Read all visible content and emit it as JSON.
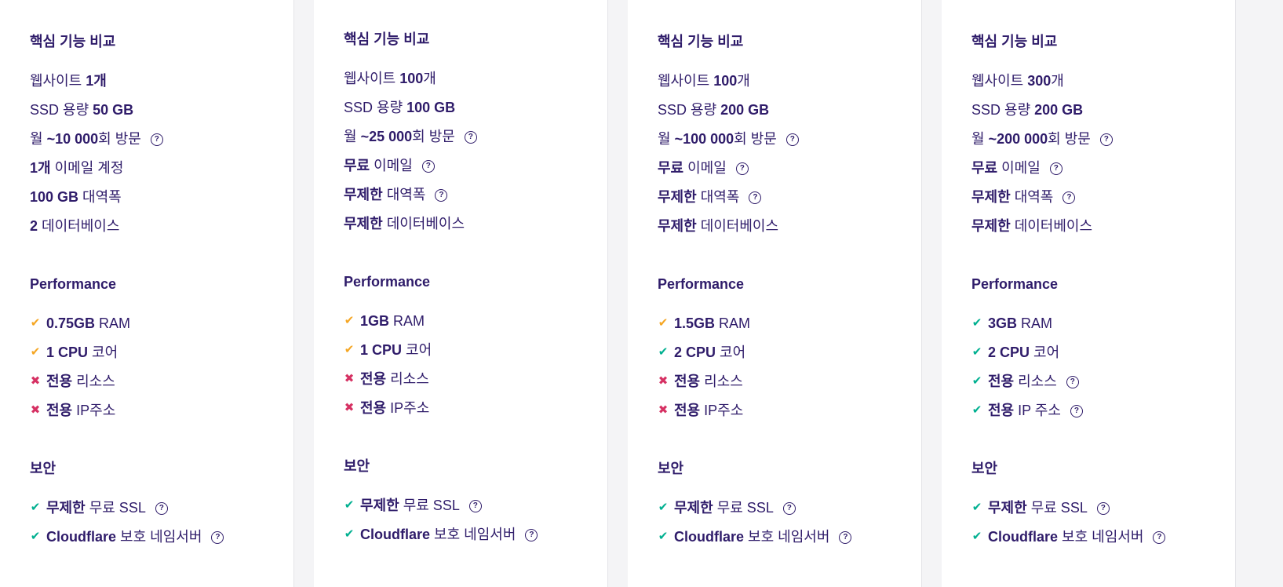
{
  "colors": {
    "text": "#2f1c6a",
    "check_orange": "#f5a623",
    "check_green": "#00b090",
    "cross": "#d63163"
  },
  "cards": [
    {
      "sections": [
        {
          "title": "핵심 기능 비교",
          "items": [
            {
              "icon": "none",
              "parts": [
                {
                  "t": "웹사이트 "
                },
                {
                  "t": "1개",
                  "b": true
                }
              ]
            },
            {
              "icon": "none",
              "parts": [
                {
                  "t": "SSD 용량 "
                },
                {
                  "t": "50 GB",
                  "b": true
                }
              ]
            },
            {
              "icon": "none",
              "help": true,
              "parts": [
                {
                  "t": "월 "
                },
                {
                  "t": "~10 000",
                  "b": true
                },
                {
                  "t": "회 방문"
                }
              ]
            },
            {
              "icon": "none",
              "parts": [
                {
                  "t": "1개",
                  "b": true
                },
                {
                  "t": " 이메일 계정"
                }
              ]
            },
            {
              "icon": "none",
              "parts": [
                {
                  "t": "100 GB",
                  "b": true
                },
                {
                  "t": " 대역폭"
                }
              ]
            },
            {
              "icon": "none",
              "parts": [
                {
                  "t": "2",
                  "b": true
                },
                {
                  "t": " 데이터베이스"
                }
              ]
            }
          ]
        },
        {
          "title": "Performance",
          "items": [
            {
              "icon": "check-orange",
              "parts": [
                {
                  "t": "0.75GB",
                  "b": true
                },
                {
                  "t": " RAM"
                }
              ]
            },
            {
              "icon": "check-orange",
              "parts": [
                {
                  "t": "1 CPU",
                  "b": true
                },
                {
                  "t": " 코어"
                }
              ]
            },
            {
              "icon": "cross",
              "parts": [
                {
                  "t": "전용",
                  "b": true
                },
                {
                  "t": " 리소스"
                }
              ]
            },
            {
              "icon": "cross",
              "parts": [
                {
                  "t": "전용",
                  "b": true
                },
                {
                  "t": " IP주소"
                }
              ]
            }
          ]
        },
        {
          "title": "보안",
          "items": [
            {
              "icon": "check-green",
              "help": true,
              "parts": [
                {
                  "t": "무제한",
                  "b": true
                },
                {
                  "t": " 무료 SSL"
                }
              ]
            },
            {
              "icon": "check-green",
              "help": true,
              "parts": [
                {
                  "t": "Cloudflare",
                  "b": true
                },
                {
                  "t": " 보호 네임서버"
                }
              ]
            }
          ]
        }
      ]
    },
    {
      "sections": [
        {
          "title": "핵심 기능 비교",
          "items": [
            {
              "icon": "none",
              "parts": [
                {
                  "t": "웹사이트 "
                },
                {
                  "t": "100",
                  "b": true
                },
                {
                  "t": "개"
                }
              ]
            },
            {
              "icon": "none",
              "parts": [
                {
                  "t": "SSD 용량 "
                },
                {
                  "t": "100 GB",
                  "b": true
                }
              ]
            },
            {
              "icon": "none",
              "help": true,
              "parts": [
                {
                  "t": "월 "
                },
                {
                  "t": "~25 000",
                  "b": true
                },
                {
                  "t": "회 방문"
                }
              ]
            },
            {
              "icon": "none",
              "help": true,
              "parts": [
                {
                  "t": "무료",
                  "b": true
                },
                {
                  "t": " 이메일"
                }
              ]
            },
            {
              "icon": "none",
              "help": true,
              "parts": [
                {
                  "t": "무제한",
                  "b": true
                },
                {
                  "t": " 대역폭"
                }
              ]
            },
            {
              "icon": "none",
              "parts": [
                {
                  "t": "무제한",
                  "b": true
                },
                {
                  "t": " 데이터베이스"
                }
              ]
            }
          ]
        },
        {
          "title": "Performance",
          "items": [
            {
              "icon": "check-orange",
              "parts": [
                {
                  "t": "1GB",
                  "b": true
                },
                {
                  "t": " RAM"
                }
              ]
            },
            {
              "icon": "check-orange",
              "parts": [
                {
                  "t": "1 CPU",
                  "b": true
                },
                {
                  "t": " 코어"
                }
              ]
            },
            {
              "icon": "cross",
              "parts": [
                {
                  "t": "전용",
                  "b": true
                },
                {
                  "t": " 리소스"
                }
              ]
            },
            {
              "icon": "cross",
              "parts": [
                {
                  "t": "전용",
                  "b": true
                },
                {
                  "t": " IP주소"
                }
              ]
            }
          ]
        },
        {
          "title": "보안",
          "items": [
            {
              "icon": "check-green",
              "help": true,
              "parts": [
                {
                  "t": "무제한",
                  "b": true
                },
                {
                  "t": " 무료 SSL"
                }
              ]
            },
            {
              "icon": "check-green",
              "help": true,
              "parts": [
                {
                  "t": "Cloudflare",
                  "b": true
                },
                {
                  "t": " 보호 네임서버"
                }
              ]
            }
          ]
        }
      ]
    },
    {
      "sections": [
        {
          "title": "핵심 기능 비교",
          "items": [
            {
              "icon": "none",
              "parts": [
                {
                  "t": "웹사이트 "
                },
                {
                  "t": "100",
                  "b": true
                },
                {
                  "t": "개"
                }
              ]
            },
            {
              "icon": "none",
              "parts": [
                {
                  "t": "SSD 용량 "
                },
                {
                  "t": "200 GB",
                  "b": true
                }
              ]
            },
            {
              "icon": "none",
              "help": true,
              "parts": [
                {
                  "t": "월 "
                },
                {
                  "t": "~100 000",
                  "b": true
                },
                {
                  "t": "회 방문"
                }
              ]
            },
            {
              "icon": "none",
              "help": true,
              "parts": [
                {
                  "t": "무료",
                  "b": true
                },
                {
                  "t": " 이메일"
                }
              ]
            },
            {
              "icon": "none",
              "help": true,
              "parts": [
                {
                  "t": "무제한",
                  "b": true
                },
                {
                  "t": " 대역폭"
                }
              ]
            },
            {
              "icon": "none",
              "parts": [
                {
                  "t": "무제한",
                  "b": true
                },
                {
                  "t": " 데이터베이스"
                }
              ]
            }
          ]
        },
        {
          "title": "Performance",
          "items": [
            {
              "icon": "check-orange",
              "parts": [
                {
                  "t": "1.5GB",
                  "b": true
                },
                {
                  "t": " RAM"
                }
              ]
            },
            {
              "icon": "check-green",
              "parts": [
                {
                  "t": "2 CPU",
                  "b": true
                },
                {
                  "t": " 코어"
                }
              ]
            },
            {
              "icon": "cross",
              "parts": [
                {
                  "t": "전용",
                  "b": true
                },
                {
                  "t": " 리소스"
                }
              ]
            },
            {
              "icon": "cross",
              "parts": [
                {
                  "t": "전용",
                  "b": true
                },
                {
                  "t": " IP주소"
                }
              ]
            }
          ]
        },
        {
          "title": "보안",
          "items": [
            {
              "icon": "check-green",
              "help": true,
              "parts": [
                {
                  "t": "무제한",
                  "b": true
                },
                {
                  "t": " 무료 SSL"
                }
              ]
            },
            {
              "icon": "check-green",
              "help": true,
              "parts": [
                {
                  "t": "Cloudflare",
                  "b": true
                },
                {
                  "t": " 보호 네임서버"
                }
              ]
            }
          ]
        }
      ]
    },
    {
      "sections": [
        {
          "title": "핵심 기능 비교",
          "items": [
            {
              "icon": "none",
              "parts": [
                {
                  "t": "웹사이트 "
                },
                {
                  "t": "300",
                  "b": true
                },
                {
                  "t": "개"
                }
              ]
            },
            {
              "icon": "none",
              "parts": [
                {
                  "t": "SSD 용량 "
                },
                {
                  "t": "200 GB",
                  "b": true
                }
              ]
            },
            {
              "icon": "none",
              "help": true,
              "parts": [
                {
                  "t": "월 "
                },
                {
                  "t": "~200 000",
                  "b": true
                },
                {
                  "t": "회 방문"
                }
              ]
            },
            {
              "icon": "none",
              "help": true,
              "parts": [
                {
                  "t": "무료",
                  "b": true
                },
                {
                  "t": " 이메일"
                }
              ]
            },
            {
              "icon": "none",
              "help": true,
              "parts": [
                {
                  "t": "무제한",
                  "b": true
                },
                {
                  "t": " 대역폭"
                }
              ]
            },
            {
              "icon": "none",
              "parts": [
                {
                  "t": "무제한",
                  "b": true
                },
                {
                  "t": " 데이터베이스"
                }
              ]
            }
          ]
        },
        {
          "title": "Performance",
          "items": [
            {
              "icon": "check-green",
              "parts": [
                {
                  "t": "3GB",
                  "b": true
                },
                {
                  "t": " RAM"
                }
              ]
            },
            {
              "icon": "check-green",
              "parts": [
                {
                  "t": "2 CPU",
                  "b": true
                },
                {
                  "t": " 코어"
                }
              ]
            },
            {
              "icon": "check-green",
              "help": true,
              "parts": [
                {
                  "t": "전용",
                  "b": true
                },
                {
                  "t": " 리소스"
                }
              ]
            },
            {
              "icon": "check-green",
              "help": true,
              "parts": [
                {
                  "t": "전용",
                  "b": true
                },
                {
                  "t": " IP 주소"
                }
              ]
            }
          ]
        },
        {
          "title": "보안",
          "items": [
            {
              "icon": "check-green",
              "help": true,
              "parts": [
                {
                  "t": "무제한",
                  "b": true
                },
                {
                  "t": " 무료 SSL"
                }
              ]
            },
            {
              "icon": "check-green",
              "help": true,
              "parts": [
                {
                  "t": "Cloudflare",
                  "b": true
                },
                {
                  "t": " 보호 네임서버"
                }
              ]
            }
          ]
        }
      ]
    }
  ]
}
